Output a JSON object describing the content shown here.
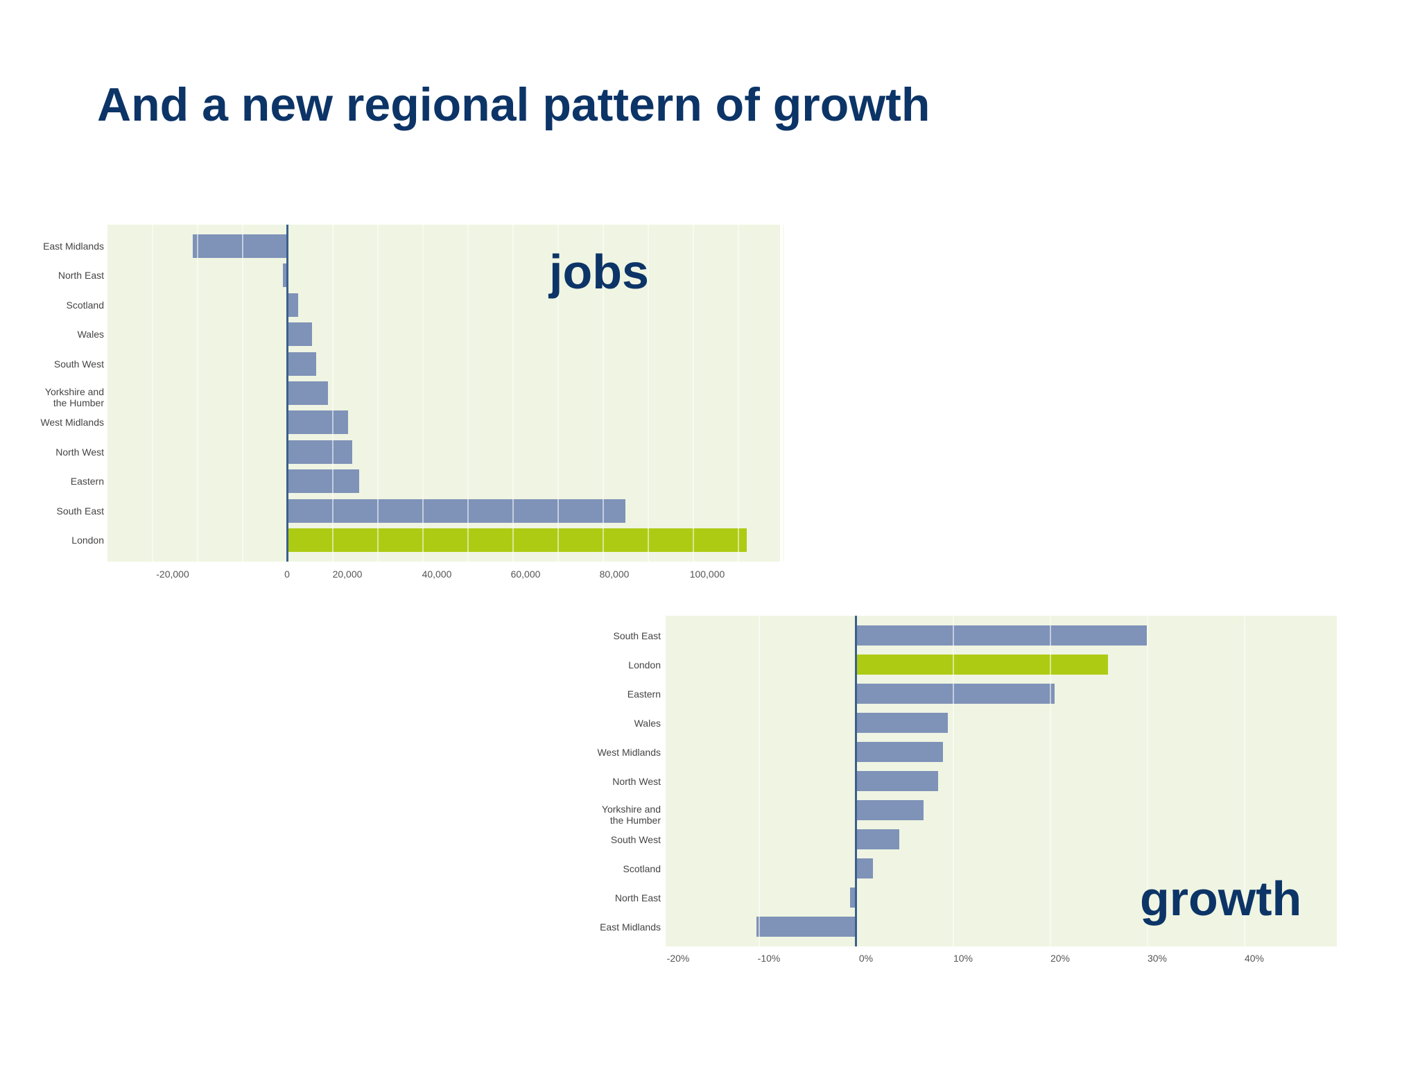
{
  "slide": {
    "title": "And a new regional pattern of growth"
  },
  "colors": {
    "title": "#0c3467",
    "bar": "#7f92b8",
    "highlight_bar": "#aecb14",
    "plot_background": "#eff5e2"
  },
  "chart_data": [
    {
      "type": "bar",
      "orientation": "horizontal",
      "title": "jobs",
      "annotation": "jobs",
      "categories": [
        "East Midlands",
        "North East",
        "Scotland",
        "Wales",
        "South West",
        "Yorkshire and the Humber",
        "West Midlands",
        "North West",
        "Eastern",
        "South East",
        "London"
      ],
      "values": [
        -21000,
        -1000,
        2500,
        5500,
        6500,
        9000,
        13500,
        14500,
        16000,
        75000,
        102000
      ],
      "highlight": "London",
      "xlabel": "",
      "ylabel": "",
      "xlim": [
        -40000,
        110000
      ],
      "xticks": [
        "-20,000",
        "0",
        "20,000",
        "40,000",
        "60,000",
        "80,000",
        "100,000"
      ],
      "grid": true,
      "legend": null
    },
    {
      "type": "bar",
      "orientation": "horizontal",
      "title": "growth",
      "annotation": "growth",
      "categories": [
        "South East",
        "London",
        "Eastern",
        "Wales",
        "West Midlands",
        "North West",
        "Yorkshire and the Humber",
        "South West",
        "Scotland",
        "North East",
        "East Midlands"
      ],
      "values": [
        30,
        26,
        20.5,
        9.5,
        9,
        8.5,
        7,
        4.5,
        1.8,
        -0.6,
        -10.2
      ],
      "unit": "%",
      "highlight": "London",
      "xlabel": "",
      "ylabel": "",
      "xlim": [
        -20,
        49
      ],
      "xticks": [
        "-20%",
        "-10%",
        "0%",
        "10%",
        "20%",
        "30%",
        "40%"
      ],
      "grid": true,
      "legend": null
    }
  ],
  "charts": {
    "jobs": {
      "label": "jobs",
      "rows": [
        {
          "name": "East Midlands",
          "l1": "East Midlands",
          "l2": ""
        },
        {
          "name": "North East",
          "l1": "North East",
          "l2": ""
        },
        {
          "name": "Scotland",
          "l1": "Scotland",
          "l2": ""
        },
        {
          "name": "Wales",
          "l1": "Wales",
          "l2": ""
        },
        {
          "name": "South West",
          "l1": "South West",
          "l2": ""
        },
        {
          "name": "Yorkshire and the Humber",
          "l1": "Yorkshire and",
          "l2": "the Humber"
        },
        {
          "name": "West Midlands",
          "l1": "West Midlands",
          "l2": ""
        },
        {
          "name": "North West",
          "l1": "North West",
          "l2": ""
        },
        {
          "name": "Eastern",
          "l1": "Eastern",
          "l2": ""
        },
        {
          "name": "South East",
          "l1": "South East",
          "l2": ""
        },
        {
          "name": "London",
          "l1": "London",
          "l2": ""
        }
      ],
      "ticks": [
        "-20,000",
        "0",
        "20,000",
        "40,000",
        "60,000",
        "80,000",
        "100,000"
      ]
    },
    "growth": {
      "label": "growth",
      "rows": [
        {
          "name": "South East",
          "l1": "South East",
          "l2": ""
        },
        {
          "name": "London",
          "l1": "London",
          "l2": ""
        },
        {
          "name": "Eastern",
          "l1": "Eastern",
          "l2": ""
        },
        {
          "name": "Wales",
          "l1": "Wales",
          "l2": ""
        },
        {
          "name": "West Midlands",
          "l1": "West Midlands",
          "l2": ""
        },
        {
          "name": "North West",
          "l1": "North West",
          "l2": ""
        },
        {
          "name": "Yorkshire and the Humber",
          "l1": "Yorkshire and",
          "l2": "the Humber"
        },
        {
          "name": "South West",
          "l1": "South West",
          "l2": ""
        },
        {
          "name": "Scotland",
          "l1": "Scotland",
          "l2": ""
        },
        {
          "name": "North East",
          "l1": "North East",
          "l2": ""
        },
        {
          "name": "East Midlands",
          "l1": "East Midlands",
          "l2": ""
        }
      ],
      "ticks": [
        "-20%",
        "-10%",
        "0%",
        "10%",
        "20%",
        "30%",
        "40%"
      ]
    }
  }
}
